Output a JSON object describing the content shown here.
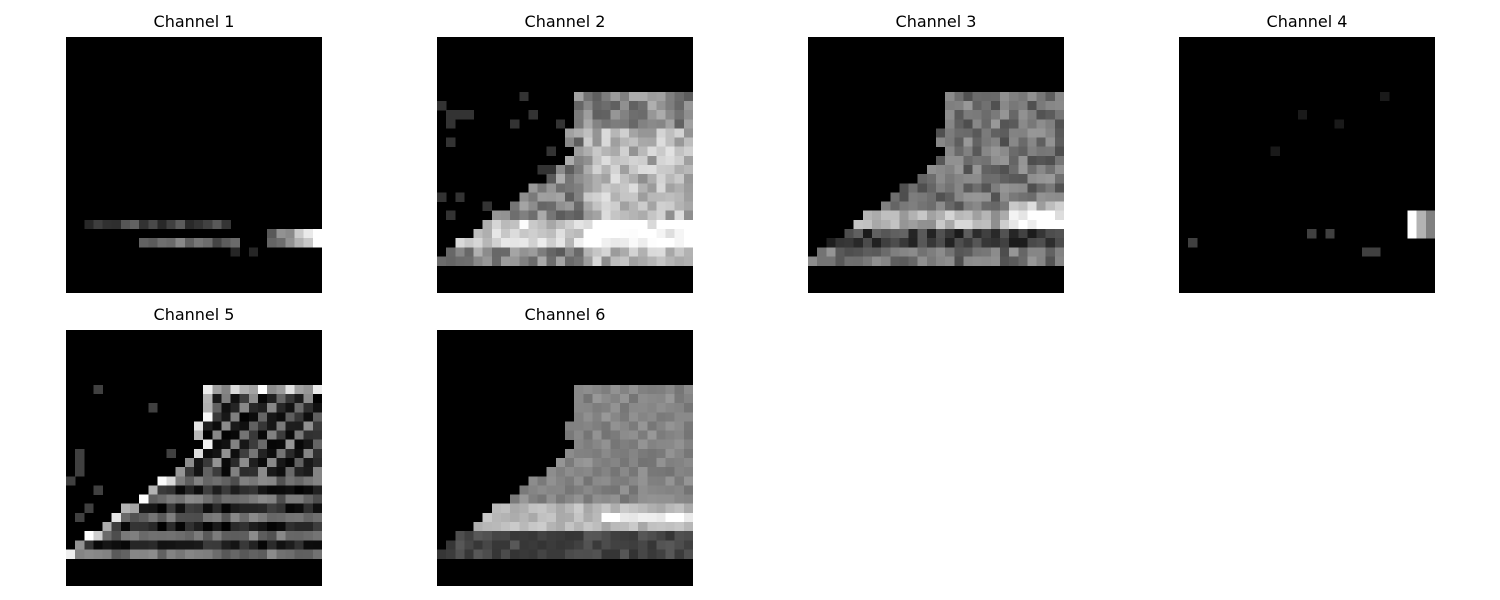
{
  "figure": {
    "background_color": "#ffffff",
    "panel_background": "#000000",
    "colormap": "grayscale",
    "grid": {
      "rows": 2,
      "cols": 4
    },
    "panels": [
      {
        "title": "Channel 1",
        "content": "sparse bright horizontal band along the sole, strongest at the right edge"
      },
      {
        "title": "Channel 2",
        "content": "ankle boot silhouette, bright fill on body and sole"
      },
      {
        "title": "Channel 3",
        "content": "ankle boot silhouette, mid-gray fill, bright near heel"
      },
      {
        "title": "Channel 4",
        "content": "almost black, a few isolated pixels, bright spot at right edge near sole"
      },
      {
        "title": "Channel 5",
        "content": "edge map of ankle boot outline and laces"
      },
      {
        "title": "Channel 6",
        "content": "smooth ankle boot silhouette, mid-gray fill, bright sole"
      }
    ]
  }
}
